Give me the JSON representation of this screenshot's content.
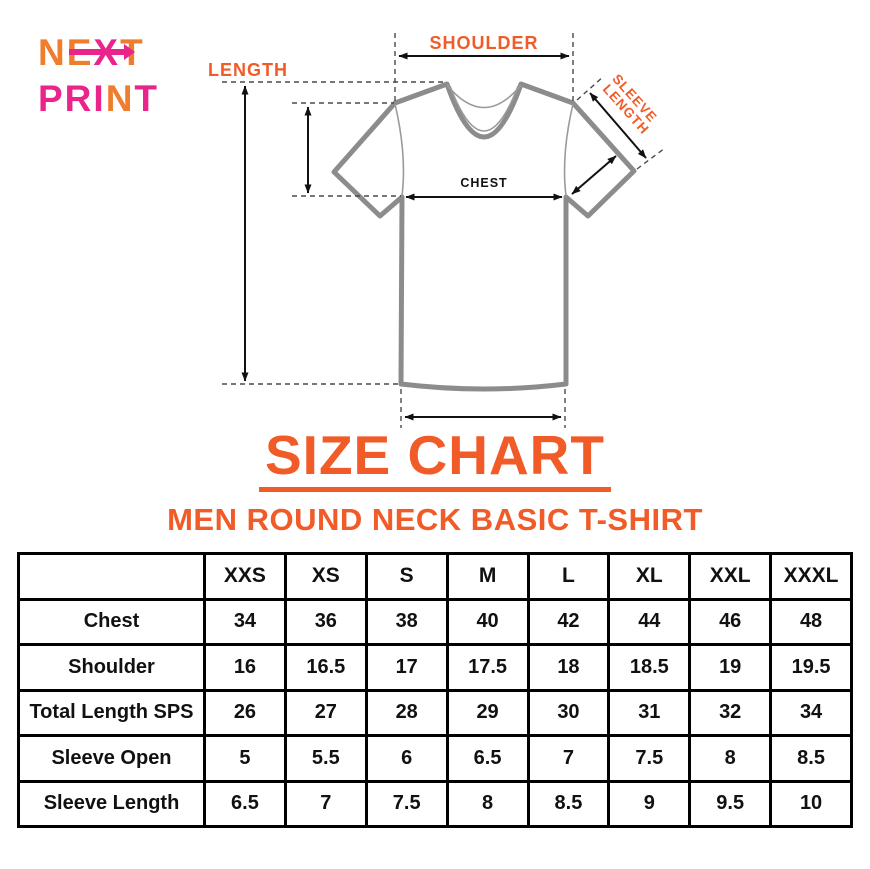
{
  "colors": {
    "accent_orange": "#F15B27",
    "logo_orange": "#EF7D2D",
    "logo_pink": "#E9258C",
    "shirt_outline": "#8C8C8C",
    "table_border": "#000000"
  },
  "logo": {
    "word1_part1": "NE",
    "word1_part2": "X",
    "word1_part3": "T",
    "word2_part1": "PRI",
    "word2_part2": "N",
    "word2_part3": "T"
  },
  "diagram": {
    "shoulder_label": "SHOULDER",
    "length_label": "LENGTH",
    "sleeve_length_label_line1": "SLEEVE",
    "sleeve_length_label_line2": "LENGTH",
    "chest_label": "CHEST"
  },
  "title": {
    "heading": "SIZE CHART",
    "subheading": "MEN ROUND NECK BASIC T-SHIRT"
  },
  "table": {
    "columns": [
      "",
      "XXS",
      "XS",
      "S",
      "M",
      "L",
      "XL",
      "XXL",
      "XXXL"
    ],
    "rows": [
      {
        "label": "Chest",
        "values": [
          "34",
          "36",
          "38",
          "40",
          "42",
          "44",
          "46",
          "48"
        ]
      },
      {
        "label": "Shoulder",
        "values": [
          "16",
          "16.5",
          "17",
          "17.5",
          "18",
          "18.5",
          "19",
          "19.5"
        ]
      },
      {
        "label": "Total Length SPS",
        "values": [
          "26",
          "27",
          "28",
          "29",
          "30",
          "31",
          "32",
          "34"
        ]
      },
      {
        "label": "Sleeve Open",
        "values": [
          "5",
          "5.5",
          "6",
          "6.5",
          "7",
          "7.5",
          "8",
          "8.5"
        ]
      },
      {
        "label": "Sleeve Length",
        "values": [
          "6.5",
          "7",
          "7.5",
          "8",
          "8.5",
          "9",
          "9.5",
          "10"
        ]
      }
    ]
  }
}
